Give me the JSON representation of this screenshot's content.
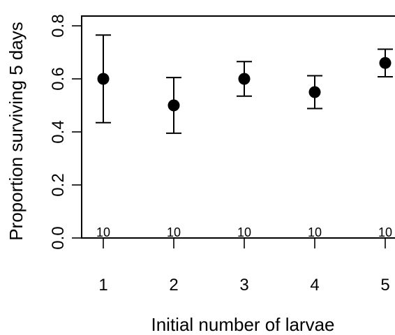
{
  "chart_data": {
    "type": "scatter",
    "title": "",
    "xlabel": "Initial number of larvae",
    "ylabel": "Proportion surviving 5 days",
    "x": [
      1,
      2,
      3,
      4,
      5
    ],
    "xticks": [
      "1",
      "2",
      "3",
      "4",
      "5"
    ],
    "yticks": [
      "0.0",
      "0.2",
      "0.4",
      "0.6",
      "0.8"
    ],
    "ylim": [
      0,
      0.8
    ],
    "series": [
      {
        "values": [
          0.6,
          0.5,
          0.6,
          0.55,
          0.66
        ],
        "lower": [
          0.435,
          0.395,
          0.535,
          0.488,
          0.608
        ],
        "upper": [
          0.765,
          0.605,
          0.665,
          0.612,
          0.712
        ],
        "sample_labels": [
          "10",
          "10",
          "10",
          "10",
          "10"
        ]
      }
    ],
    "grid": false,
    "legend": "none",
    "colors": {
      "ink": "#000000",
      "background": "#ffffff"
    }
  }
}
